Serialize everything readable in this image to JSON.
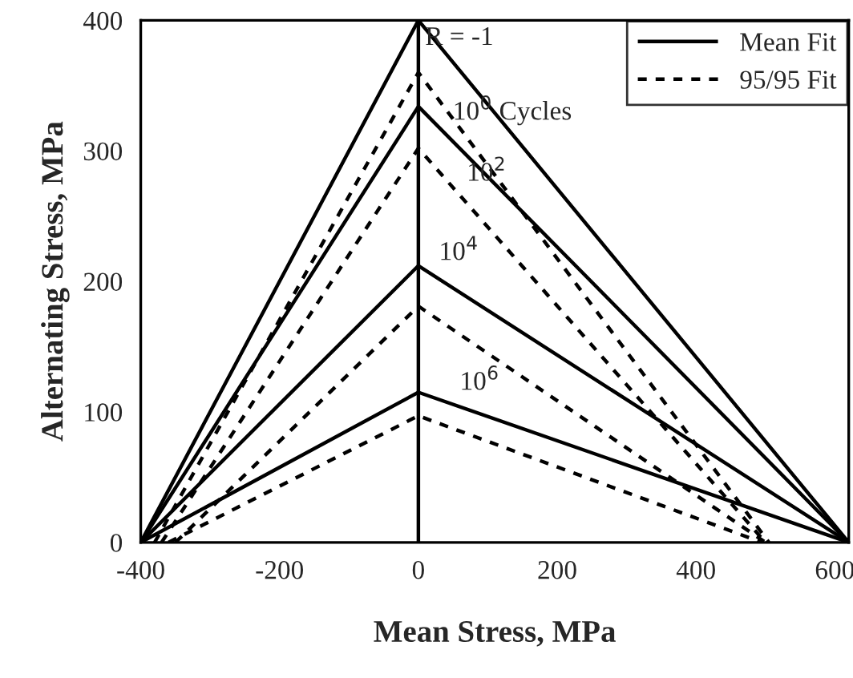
{
  "chart_data": {
    "type": "line",
    "xlabel": "Mean Stress, MPa",
    "ylabel": "Alternating Stress, MPa",
    "xlim": [
      -400,
      620
    ],
    "xticks": [
      -400,
      -200,
      0,
      200,
      400,
      600
    ],
    "ylim": [
      0,
      400
    ],
    "yticks": [
      0,
      100,
      200,
      300,
      400
    ],
    "grid": false,
    "legend": "top right",
    "marker": "none",
    "series": [
      {
        "name": "Mean Fit",
        "color": "#000000",
        "line_style": "solid",
        "x": [
          -400,
          0,
          620
        ],
        "values": [
          0,
          400,
          0
        ]
      },
      {
        "color": "#000000",
        "line_style": "solid",
        "x": [
          -400,
          0,
          620
        ],
        "values": [
          0,
          334,
          0
        ]
      },
      {
        "color": "#000000",
        "line_style": "solid",
        "x": [
          -400,
          0,
          620
        ],
        "values": [
          0,
          212,
          0
        ]
      },
      {
        "color": "#000000",
        "line_style": "solid",
        "x": [
          -400,
          0,
          620
        ],
        "values": [
          0,
          115,
          0
        ]
      },
      {
        "name": "95/95 Fit",
        "color": "#000000",
        "line_style": "dotted",
        "x": [
          -380,
          0,
          505
        ],
        "values": [
          0,
          360,
          0
        ]
      },
      {
        "color": "#000000",
        "line_style": "dotted",
        "x": [
          -370,
          0,
          500
        ],
        "values": [
          0,
          302,
          0
        ]
      },
      {
        "color": "#000000",
        "line_style": "dotted",
        "x": [
          -350,
          0,
          500
        ],
        "values": [
          0,
          181,
          0
        ]
      },
      {
        "color": "#000000",
        "line_style": "dotted",
        "x": [
          -360,
          0,
          495
        ],
        "values": [
          0,
          97,
          0
        ]
      }
    ],
    "ref_lines": [
      {
        "axis": "x",
        "value": 0,
        "color": "#000000",
        "line_style": "solid"
      }
    ],
    "annotations": [
      {
        "text": "R = -1",
        "x": 0,
        "y": 370
      },
      {
        "text": "10$^{0}$ Cycles",
        "x": 40,
        "y": 312.5
      },
      {
        "text": "10$^{2}$",
        "x": 60,
        "y": 265.8
      },
      {
        "text": "10$^{4}$",
        "x": 20,
        "y": 205.2
      },
      {
        "text": "10$^{6}$",
        "x": 50,
        "y": 105.7
      }
    ]
  }
}
